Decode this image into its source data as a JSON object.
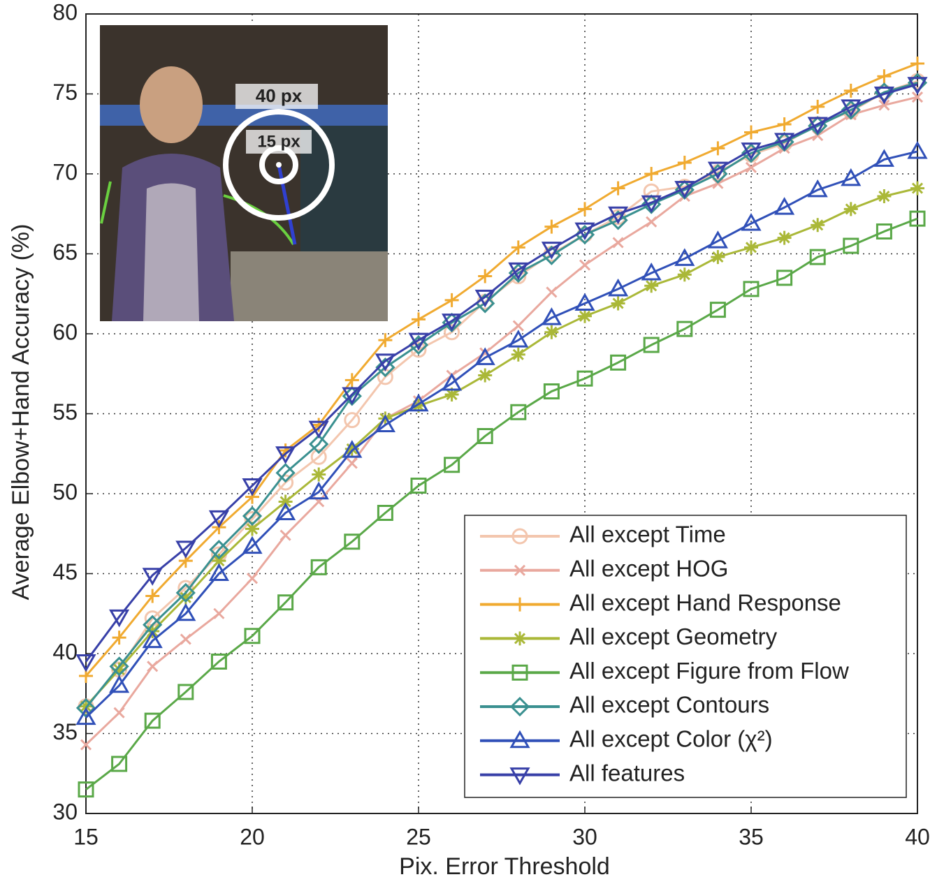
{
  "chart_data": {
    "type": "line",
    "xlabel": "Pix. Error Threshold",
    "ylabel": "Average Elbow+Hand Accuracy (%)",
    "annotations": [
      "40 px",
      "15 px"
    ],
    "x": [
      15,
      16,
      17,
      18,
      19,
      20,
      21,
      22,
      23,
      24,
      25,
      26,
      27,
      28,
      29,
      30,
      31,
      32,
      33,
      34,
      35,
      36,
      37,
      38,
      39,
      40
    ],
    "xlim": [
      15,
      40
    ],
    "xticks": [
      15,
      20,
      25,
      30,
      35,
      40
    ],
    "ylim": [
      30,
      80
    ],
    "yticks": [
      30,
      35,
      40,
      45,
      50,
      55,
      60,
      65,
      70,
      75,
      80
    ],
    "grid": true,
    "legend": "lower right",
    "series": [
      {
        "name": "All except Time",
        "color": "#f3c6ae",
        "marker": "circle",
        "values": [
          36.7,
          39.0,
          42.2,
          44.1,
          46.2,
          48.4,
          50.7,
          52.3,
          54.6,
          57.3,
          59.0,
          60.1,
          62.0,
          63.6,
          65.0,
          66.2,
          67.3,
          68.9,
          69.2,
          70.1,
          71.2,
          71.9,
          73.1,
          73.9,
          75.1,
          75.8
        ]
      },
      {
        "name": "All except HOG",
        "color": "#e9a89e",
        "marker": "x",
        "values": [
          34.3,
          36.3,
          39.2,
          40.9,
          42.5,
          44.7,
          47.4,
          49.5,
          51.9,
          54.7,
          55.8,
          57.4,
          58.8,
          60.5,
          62.6,
          64.3,
          65.7,
          67.0,
          68.6,
          69.4,
          70.4,
          71.6,
          72.4,
          73.7,
          74.3,
          74.8
        ]
      },
      {
        "name": "All except Hand Response",
        "color": "#f0aa30",
        "marker": "plus",
        "values": [
          38.6,
          41.0,
          43.6,
          45.8,
          47.9,
          49.8,
          52.7,
          54.3,
          57.1,
          59.6,
          60.9,
          62.1,
          63.6,
          65.4,
          66.7,
          67.8,
          69.1,
          70.0,
          70.7,
          71.6,
          72.6,
          73.1,
          74.2,
          75.2,
          76.1,
          76.9
        ]
      },
      {
        "name": "All except Geometry",
        "color": "#aab838",
        "marker": "asterisk",
        "values": [
          36.7,
          39.0,
          41.4,
          43.5,
          45.8,
          47.8,
          49.5,
          51.2,
          52.8,
          54.7,
          55.5,
          56.2,
          57.4,
          58.7,
          60.1,
          61.1,
          61.9,
          63.0,
          63.7,
          64.8,
          65.4,
          66.0,
          66.8,
          67.8,
          68.6,
          69.1
        ]
      },
      {
        "name": "All except Figure from Flow",
        "color": "#5aa848",
        "marker": "square",
        "values": [
          31.5,
          33.1,
          35.8,
          37.6,
          39.5,
          41.1,
          43.2,
          45.4,
          47.0,
          48.8,
          50.5,
          51.8,
          53.6,
          55.1,
          56.4,
          57.2,
          58.2,
          59.3,
          60.3,
          61.5,
          62.8,
          63.5,
          64.8,
          65.5,
          66.4,
          67.2
        ]
      },
      {
        "name": "All except Contours",
        "color": "#3a9090",
        "marker": "diamond",
        "values": [
          36.6,
          39.2,
          41.8,
          43.8,
          46.5,
          48.6,
          51.3,
          53.1,
          56.1,
          57.9,
          59.3,
          60.7,
          61.9,
          63.8,
          64.9,
          66.2,
          67.1,
          68.1,
          69.0,
          70.0,
          71.3,
          72.0,
          73.0,
          74.0,
          75.1,
          75.7
        ]
      },
      {
        "name": "All except Color (χ²)",
        "color": "#3050b8",
        "marker": "triangle-up",
        "values": [
          36.0,
          38.0,
          40.8,
          42.5,
          45.0,
          46.7,
          48.8,
          50.1,
          52.7,
          54.3,
          55.6,
          56.9,
          58.5,
          59.6,
          61.0,
          61.9,
          62.8,
          63.8,
          64.7,
          65.8,
          66.9,
          67.9,
          69.0,
          69.7,
          70.9,
          71.4
        ]
      },
      {
        "name": "All features",
        "color": "#3840a8",
        "marker": "triangle-down",
        "values": [
          39.5,
          42.3,
          44.9,
          46.6,
          48.5,
          50.5,
          52.5,
          54.1,
          56.2,
          58.3,
          59.6,
          60.8,
          62.3,
          64.0,
          65.3,
          66.5,
          67.5,
          68.2,
          69.1,
          70.3,
          71.5,
          72.1,
          73.1,
          74.2,
          75.0,
          75.6
        ]
      }
    ]
  }
}
